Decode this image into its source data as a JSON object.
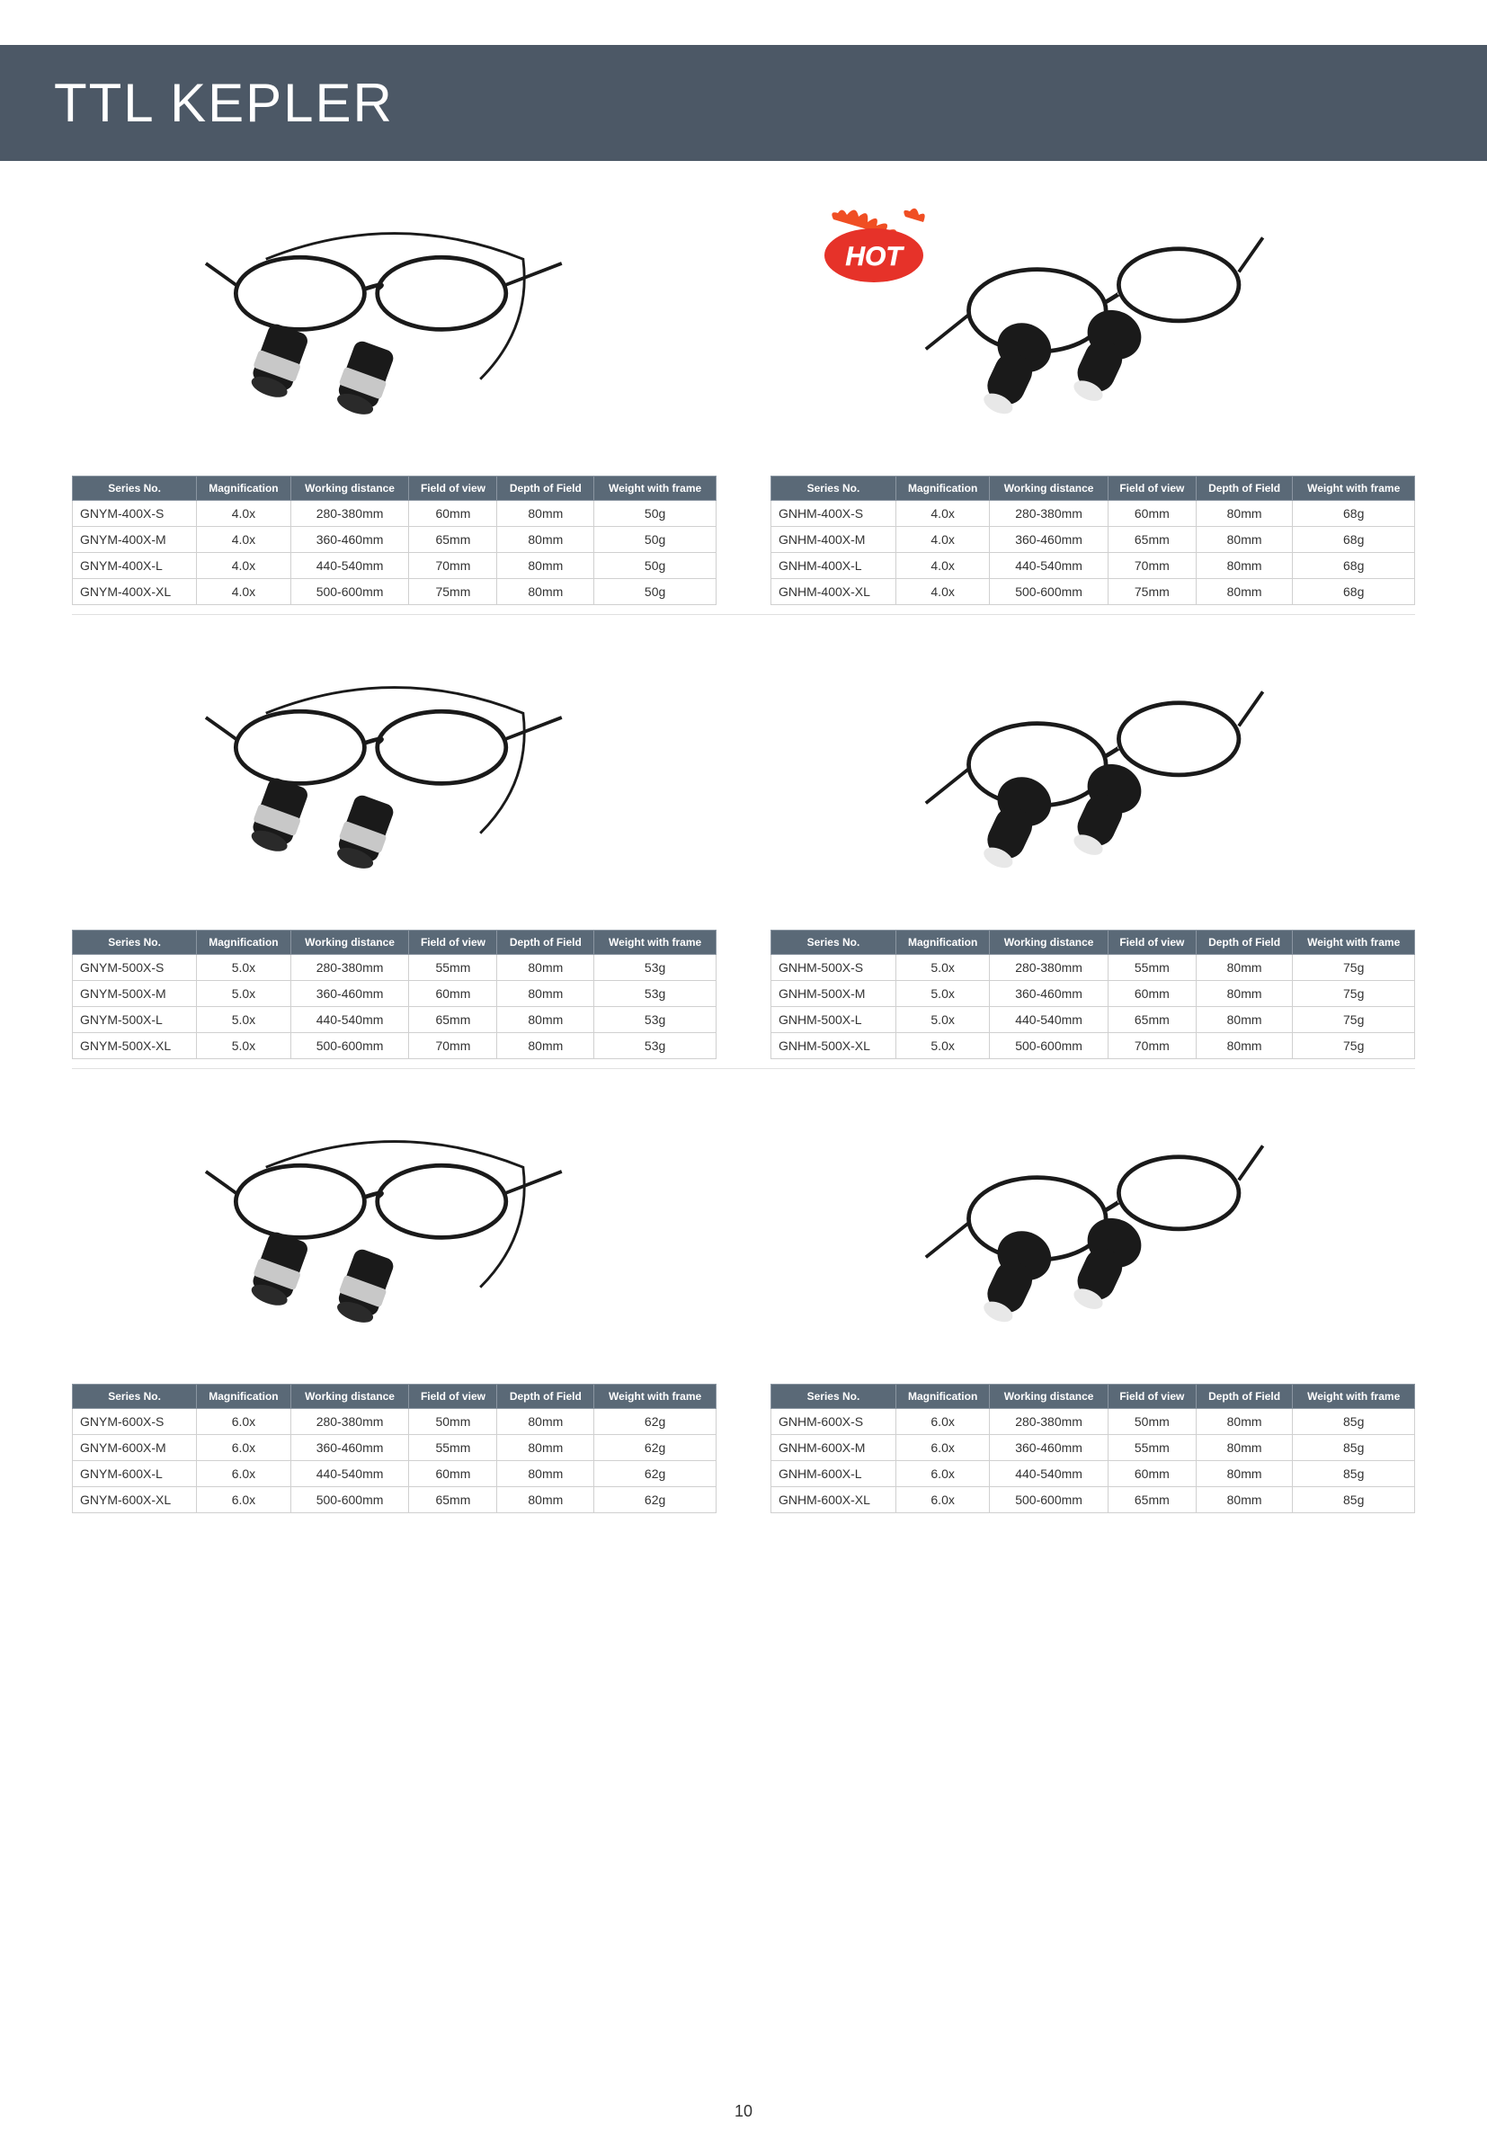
{
  "page": {
    "title": "TTL KEPLER",
    "number": "10",
    "background": "#ffffff",
    "title_bar_bg": "#4c5866",
    "title_color": "#ffffff",
    "title_fontsize": 60
  },
  "table_style": {
    "header_bg": "#5a6977",
    "header_color": "#ffffff",
    "cell_border": "#d0d0d0",
    "header_fontsize": 12,
    "cell_fontsize": 14
  },
  "columns": [
    "Series No.",
    "Magnification",
    "Working distance",
    "Field of view",
    "Depth of Field",
    "Weight with frame"
  ],
  "products": [
    {
      "left": {
        "image_type": "silver_loupe",
        "hot": false,
        "rows": [
          [
            "GNYM-400X-S",
            "4.0x",
            "280-380mm",
            "60mm",
            "80mm",
            "50g"
          ],
          [
            "GNYM-400X-M",
            "4.0x",
            "360-460mm",
            "65mm",
            "80mm",
            "50g"
          ],
          [
            "GNYM-400X-L",
            "4.0x",
            "440-540mm",
            "70mm",
            "80mm",
            "50g"
          ],
          [
            "GNYM-400X-XL",
            "4.0x",
            "500-600mm",
            "75mm",
            "80mm",
            "50g"
          ]
        ]
      },
      "right": {
        "image_type": "black_loupe",
        "hot": true,
        "rows": [
          [
            "GNHM-400X-S",
            "4.0x",
            "280-380mm",
            "60mm",
            "80mm",
            "68g"
          ],
          [
            "GNHM-400X-M",
            "4.0x",
            "360-460mm",
            "65mm",
            "80mm",
            "68g"
          ],
          [
            "GNHM-400X-L",
            "4.0x",
            "440-540mm",
            "70mm",
            "80mm",
            "68g"
          ],
          [
            "GNHM-400X-XL",
            "4.0x",
            "500-600mm",
            "75mm",
            "80mm",
            "68g"
          ]
        ]
      }
    },
    {
      "left": {
        "image_type": "silver_loupe",
        "hot": false,
        "rows": [
          [
            "GNYM-500X-S",
            "5.0x",
            "280-380mm",
            "55mm",
            "80mm",
            "53g"
          ],
          [
            "GNYM-500X-M",
            "5.0x",
            "360-460mm",
            "60mm",
            "80mm",
            "53g"
          ],
          [
            "GNYM-500X-L",
            "5.0x",
            "440-540mm",
            "65mm",
            "80mm",
            "53g"
          ],
          [
            "GNYM-500X-XL",
            "5.0x",
            "500-600mm",
            "70mm",
            "80mm",
            "53g"
          ]
        ]
      },
      "right": {
        "image_type": "black_loupe",
        "hot": false,
        "rows": [
          [
            "GNHM-500X-S",
            "5.0x",
            "280-380mm",
            "55mm",
            "80mm",
            "75g"
          ],
          [
            "GNHM-500X-M",
            "5.0x",
            "360-460mm",
            "60mm",
            "80mm",
            "75g"
          ],
          [
            "GNHM-500X-L",
            "5.0x",
            "440-540mm",
            "65mm",
            "80mm",
            "75g"
          ],
          [
            "GNHM-500X-XL",
            "5.0x",
            "500-600mm",
            "70mm",
            "80mm",
            "75g"
          ]
        ]
      }
    },
    {
      "left": {
        "image_type": "silver_loupe",
        "hot": false,
        "rows": [
          [
            "GNYM-600X-S",
            "6.0x",
            "280-380mm",
            "50mm",
            "80mm",
            "62g"
          ],
          [
            "GNYM-600X-M",
            "6.0x",
            "360-460mm",
            "55mm",
            "80mm",
            "62g"
          ],
          [
            "GNYM-600X-L",
            "6.0x",
            "440-540mm",
            "60mm",
            "80mm",
            "62g"
          ],
          [
            "GNYM-600X-XL",
            "6.0x",
            "500-600mm",
            "65mm",
            "80mm",
            "62g"
          ]
        ]
      },
      "right": {
        "image_type": "black_loupe",
        "hot": false,
        "rows": [
          [
            "GNHM-600X-S",
            "6.0x",
            "280-380mm",
            "50mm",
            "80mm",
            "85g"
          ],
          [
            "GNHM-600X-M",
            "6.0x",
            "360-460mm",
            "55mm",
            "80mm",
            "85g"
          ],
          [
            "GNHM-600X-L",
            "6.0x",
            "440-540mm",
            "60mm",
            "80mm",
            "85g"
          ],
          [
            "GNHM-600X-XL",
            "6.0x",
            "500-600mm",
            "65mm",
            "80mm",
            "85g"
          ]
        ]
      }
    }
  ],
  "hot_badge": {
    "text": "HOT",
    "bg_color": "#e63229",
    "text_color": "#ffffff",
    "flame_color": "#f04e23"
  }
}
